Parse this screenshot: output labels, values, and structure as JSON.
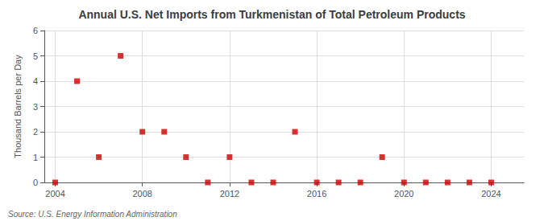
{
  "chart_data": {
    "type": "scatter",
    "title": "Annual U.S. Net Imports from Turkmenistan of Total Petroleum Products",
    "ylabel": "Thousand Barrels per Day",
    "annotation": "Source: U.S. Energy Information Administration",
    "x": [
      2004,
      2005,
      2006,
      2007,
      2008,
      2009,
      2010,
      2011,
      2012,
      2013,
      2014,
      2015,
      2016,
      2017,
      2018,
      2019,
      2020,
      2021,
      2022,
      2023,
      2024
    ],
    "values": [
      0,
      4,
      1,
      5,
      2,
      2,
      1,
      0,
      1,
      0,
      0,
      2,
      0,
      0,
      0,
      1,
      0,
      0,
      0,
      0,
      0
    ],
    "color": "#cc0000",
    "marker": "square",
    "xlim": [
      2003.5,
      2025.5
    ],
    "xticks": [
      2004,
      2008,
      2012,
      2016,
      2020,
      2024
    ],
    "ylim": [
      0,
      6
    ],
    "yticks": [
      0,
      1,
      2,
      3,
      4,
      5,
      6
    ],
    "grid": true
  }
}
